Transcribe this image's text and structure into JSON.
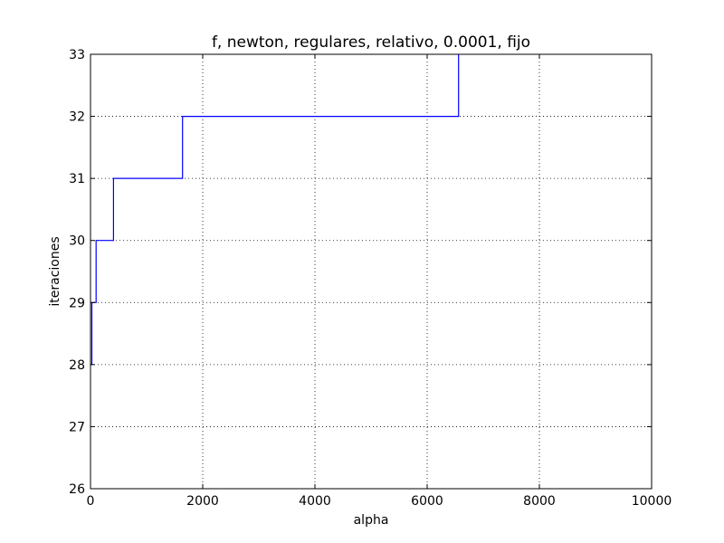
{
  "chart_data": {
    "type": "line",
    "title": "f, newton, regulares, relativo, 0.0001, fijo",
    "xlabel": "alpha",
    "ylabel": "iteraciones",
    "xlim": [
      0,
      10000
    ],
    "ylim": [
      26,
      33
    ],
    "xticks": [
      0,
      2000,
      4000,
      6000,
      8000,
      10000
    ],
    "yticks": [
      26,
      27,
      28,
      29,
      30,
      31,
      32,
      33
    ],
    "grid": true,
    "line_style": "step",
    "series": [
      {
        "color": "#0000ff",
        "x": [
          0,
          0,
          25,
          25,
          100,
          100,
          410,
          410,
          1640,
          1640,
          6560,
          6560
        ],
        "y": [
          28,
          28,
          28,
          29,
          29,
          30,
          30,
          31,
          31,
          32,
          32,
          33
        ]
      }
    ]
  }
}
